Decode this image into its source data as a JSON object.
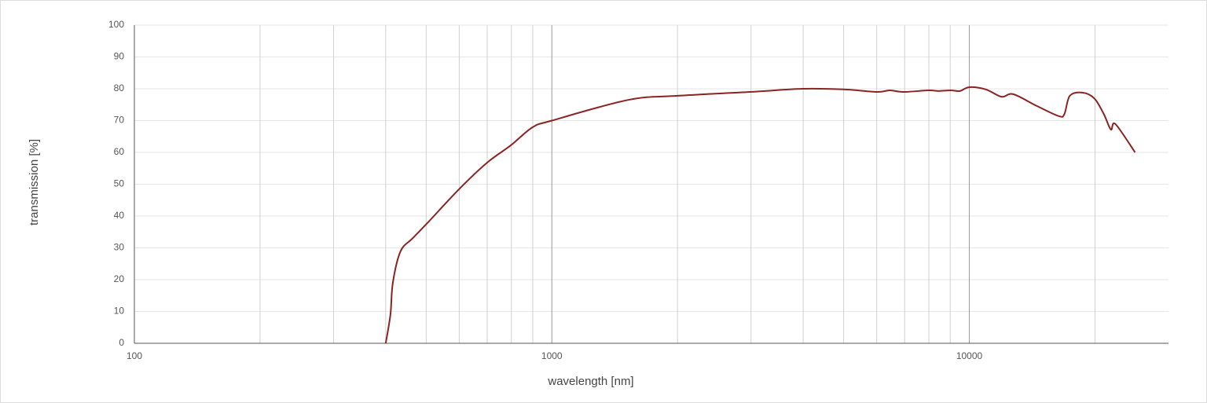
{
  "chart_data": {
    "type": "line",
    "xlabel": "wavelength [nm]",
    "ylabel": "transmission [%]",
    "xscale": "log",
    "xlim": [
      100,
      30000
    ],
    "ylim": [
      0,
      100
    ],
    "xticks": [
      100,
      1000,
      10000
    ],
    "xminorticks": [
      200,
      300,
      400,
      500,
      600,
      700,
      800,
      900,
      2000,
      3000,
      4000,
      5000,
      6000,
      7000,
      8000,
      9000,
      20000
    ],
    "yticks": [
      0,
      10,
      20,
      30,
      40,
      50,
      60,
      70,
      80,
      90,
      100
    ],
    "grid": true,
    "series": [
      {
        "color": "#8b2323",
        "x": [
          400,
          410.6,
          416,
          434,
          464,
          505,
          601,
          700,
          797,
          899,
          1000,
          1525,
          2000,
          2987,
          3990,
          5000,
          6000,
          6450,
          6950,
          7980,
          8450,
          9020,
          9490,
          10000,
          10950,
          11940,
          12740,
          14510,
          16390,
          16900,
          17410,
          18660,
          19920,
          20990,
          21830,
          22390,
          24950
        ],
        "values": [
          0,
          9.1,
          19,
          28.9,
          33,
          38,
          48.6,
          56.8,
          62.2,
          67.9,
          70,
          76.5,
          77.8,
          79,
          80,
          79.8,
          79,
          79.5,
          79,
          79.5,
          79.3,
          79.5,
          79.3,
          80.5,
          79.8,
          77.5,
          78.3,
          74.6,
          71.4,
          72.1,
          77.8,
          78.8,
          77,
          72.1,
          67.2,
          68.9,
          60
        ]
      }
    ]
  }
}
